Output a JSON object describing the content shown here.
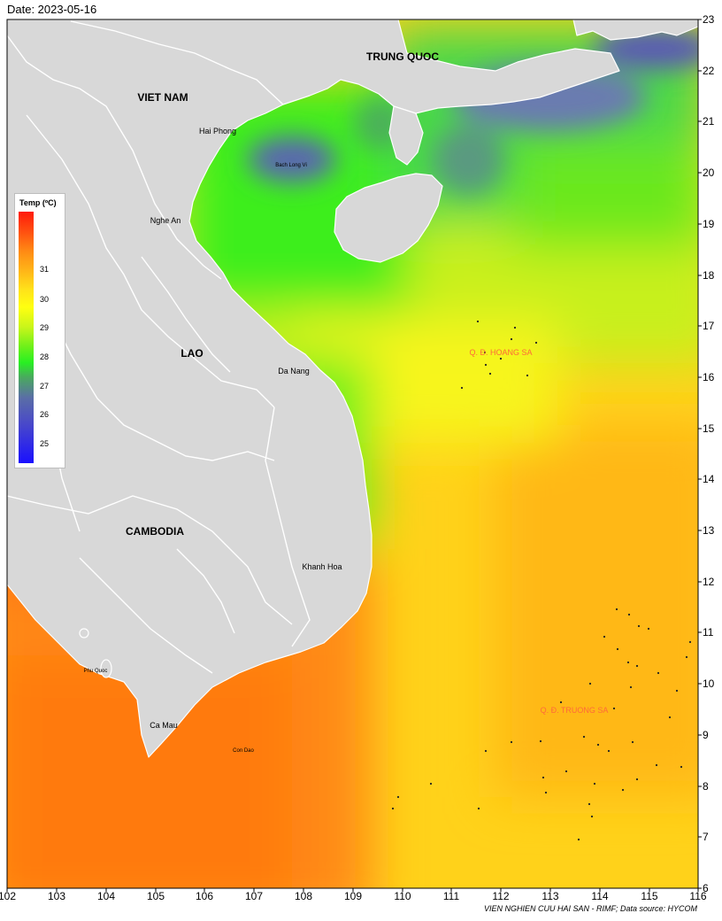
{
  "header": {
    "date": "Date: 2023-05-16"
  },
  "footer": {
    "credit": "VIEN NGHIEN CUU HAI SAN - RIMF; Data source: HYCOM"
  },
  "axes": {
    "x_ticks": [
      "102",
      "103",
      "104",
      "105",
      "106",
      "107",
      "108",
      "109",
      "110",
      "111",
      "112",
      "113",
      "114",
      "115",
      "116"
    ],
    "y_ticks": [
      "23",
      "22",
      "21",
      "20",
      "19",
      "18",
      "17",
      "16",
      "15",
      "14",
      "13",
      "12",
      "11",
      "10",
      "9",
      "8",
      "7",
      "6"
    ]
  },
  "legend": {
    "title": "Temp (ºC)",
    "ticks": [
      "31",
      "30",
      "29",
      "28",
      "27",
      "26",
      "25"
    ]
  },
  "labels": {
    "countries": {
      "vietnam": "VIET NAM",
      "china": "TRUNG QUOC",
      "laos": "LAO",
      "cambodia": "CAMBODIA"
    },
    "cities": {
      "haiphong": "Hai Phong",
      "nghean": "Nghe An",
      "danang": "Da Nang",
      "khanhhoa": "Khanh Hoa",
      "camau": "Ca Mau"
    },
    "islands": {
      "bachlongvi": "Bach Long Vi",
      "phuquoc": "Phu Quoc",
      "condao": "Con Dao"
    },
    "archipelagos": {
      "hoangsa": "Q. Đ. HOANG SA",
      "truongsa": "Q. Đ. TRUONG SA"
    }
  },
  "colors": {
    "land": "#d8d8d8",
    "border": "#ffffff",
    "warm": "#ff8a14",
    "mid": "#ffd21a",
    "yellow": "#f7f51a",
    "green": "#3cee1e",
    "cool": "#5a66b0",
    "archipelago_label": "#ff6a3a"
  }
}
